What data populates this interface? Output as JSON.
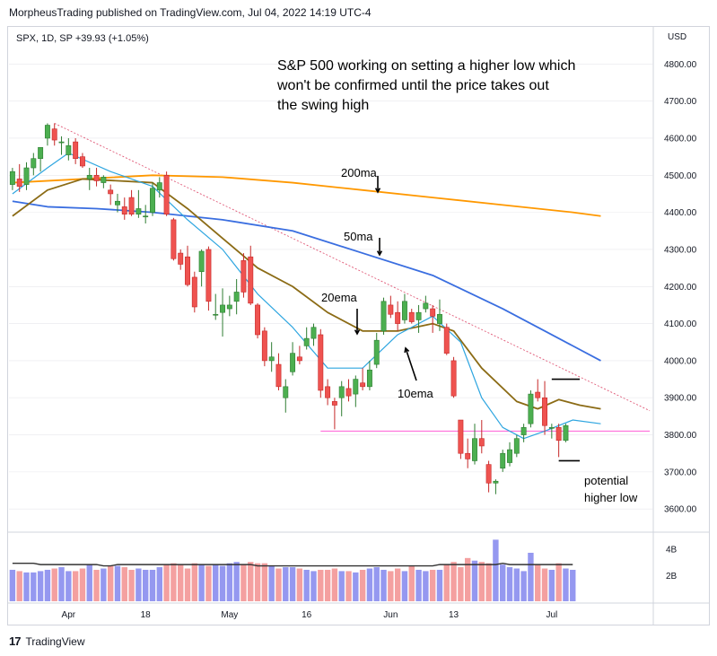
{
  "header": {
    "published_text": "MorpheusTrading published on TradingView.com, Jul 04, 2022 14:19 UTC-4"
  },
  "footer": {
    "logo_glyph": "17",
    "brand": "TradingView"
  },
  "chart_data": {
    "type": "candlestick",
    "symbol_line": "SPX, 1D, SP  +39.93 (+1.05%)",
    "y_axis_unit": "USD",
    "ylim": [
      3540,
      4900
    ],
    "y_ticks": [
      3600,
      3700,
      3800,
      3900,
      4000,
      4100,
      4200,
      4300,
      4400,
      4500,
      4600,
      4700,
      4800
    ],
    "x_ticks": [
      {
        "label": "Apr",
        "index": 8
      },
      {
        "label": "18",
        "index": 19
      },
      {
        "label": "May",
        "index": 31
      },
      {
        "label": "16",
        "index": 42
      },
      {
        "label": "Jun",
        "index": 54
      },
      {
        "label": "13",
        "index": 63
      },
      {
        "label": "Jul",
        "index": 77
      }
    ],
    "num_slots": 92,
    "candles": [
      {
        "o": 4475,
        "h": 4520,
        "l": 4460,
        "c": 4510
      },
      {
        "o": 4490,
        "h": 4530,
        "l": 4455,
        "c": 4470
      },
      {
        "o": 4475,
        "h": 4535,
        "l": 4460,
        "c": 4520
      },
      {
        "o": 4520,
        "h": 4560,
        "l": 4500,
        "c": 4545
      },
      {
        "o": 4545,
        "h": 4575,
        "l": 4510,
        "c": 4575
      },
      {
        "o": 4600,
        "h": 4640,
        "l": 4580,
        "c": 4635
      },
      {
        "o": 4625,
        "h": 4640,
        "l": 4580,
        "c": 4595
      },
      {
        "o": 4590,
        "h": 4605,
        "l": 4555,
        "c": 4590
      },
      {
        "o": 4555,
        "h": 4600,
        "l": 4540,
        "c": 4580
      },
      {
        "o": 4590,
        "h": 4600,
        "l": 4530,
        "c": 4545
      },
      {
        "o": 4550,
        "h": 4560,
        "l": 4520,
        "c": 4525
      },
      {
        "o": 4490,
        "h": 4520,
        "l": 4460,
        "c": 4500
      },
      {
        "o": 4500,
        "h": 4520,
        "l": 4470,
        "c": 4485
      },
      {
        "o": 4480,
        "h": 4500,
        "l": 4465,
        "c": 4495
      },
      {
        "o": 4460,
        "h": 4475,
        "l": 4420,
        "c": 4450
      },
      {
        "o": 4420,
        "h": 4450,
        "l": 4400,
        "c": 4430
      },
      {
        "o": 4415,
        "h": 4440,
        "l": 4380,
        "c": 4395
      },
      {
        "o": 4440,
        "h": 4460,
        "l": 4390,
        "c": 4395
      },
      {
        "o": 4395,
        "h": 4460,
        "l": 4385,
        "c": 4410
      },
      {
        "o": 4390,
        "h": 4420,
        "l": 4370,
        "c": 4390
      },
      {
        "o": 4400,
        "h": 4480,
        "l": 4390,
        "c": 4465
      },
      {
        "o": 4460,
        "h": 4495,
        "l": 4440,
        "c": 4480
      },
      {
        "o": 4500,
        "h": 4510,
        "l": 4390,
        "c": 4395
      },
      {
        "o": 4380,
        "h": 4385,
        "l": 4270,
        "c": 4275
      },
      {
        "o": 4290,
        "h": 4300,
        "l": 4245,
        "c": 4260
      },
      {
        "o": 4280,
        "h": 4310,
        "l": 4200,
        "c": 4205
      },
      {
        "o": 4225,
        "h": 4240,
        "l": 4130,
        "c": 4145
      },
      {
        "o": 4240,
        "h": 4300,
        "l": 4200,
        "c": 4295
      },
      {
        "o": 4300,
        "h": 4308,
        "l": 4135,
        "c": 4160
      },
      {
        "o": 4125,
        "h": 4180,
        "l": 4110,
        "c": 4125
      },
      {
        "o": 4130,
        "h": 4195,
        "l": 4065,
        "c": 4150
      },
      {
        "o": 4140,
        "h": 4175,
        "l": 4120,
        "c": 4150
      },
      {
        "o": 4160,
        "h": 4220,
        "l": 4125,
        "c": 4185
      },
      {
        "o": 4270,
        "h": 4290,
        "l": 4170,
        "c": 4185
      },
      {
        "o": 4280,
        "h": 4310,
        "l": 4150,
        "c": 4155
      },
      {
        "o": 4150,
        "h": 4155,
        "l": 4060,
        "c": 4070
      },
      {
        "o": 4080,
        "h": 4090,
        "l": 3985,
        "c": 4000
      },
      {
        "o": 4000,
        "h": 4050,
        "l": 3970,
        "c": 4010
      },
      {
        "o": 3990,
        "h": 4020,
        "l": 3920,
        "c": 3930
      },
      {
        "o": 3900,
        "h": 3950,
        "l": 3860,
        "c": 3930
      },
      {
        "o": 3970,
        "h": 4050,
        "l": 3960,
        "c": 4020
      },
      {
        "o": 4010,
        "h": 4040,
        "l": 3990,
        "c": 4000
      },
      {
        "o": 4040,
        "h": 4090,
        "l": 4030,
        "c": 4060
      },
      {
        "o": 4060,
        "h": 4100,
        "l": 4040,
        "c": 4090
      },
      {
        "o": 4070,
        "h": 4085,
        "l": 3900,
        "c": 3920
      },
      {
        "o": 3930,
        "h": 3950,
        "l": 3880,
        "c": 3900
      },
      {
        "o": 3890,
        "h": 3900,
        "l": 3815,
        "c": 3880
      },
      {
        "o": 3900,
        "h": 3945,
        "l": 3850,
        "c": 3930
      },
      {
        "o": 3925,
        "h": 3950,
        "l": 3890,
        "c": 3905
      },
      {
        "o": 3910,
        "h": 3960,
        "l": 3875,
        "c": 3950
      },
      {
        "o": 3940,
        "h": 3980,
        "l": 3920,
        "c": 3930
      },
      {
        "o": 3930,
        "h": 4000,
        "l": 3920,
        "c": 3975
      },
      {
        "o": 3990,
        "h": 4075,
        "l": 3980,
        "c": 4055
      },
      {
        "o": 4080,
        "h": 4170,
        "l": 4070,
        "c": 4160
      },
      {
        "o": 4150,
        "h": 4175,
        "l": 4115,
        "c": 4125
      },
      {
        "o": 4130,
        "h": 4160,
        "l": 4080,
        "c": 4100
      },
      {
        "o": 4110,
        "h": 4180,
        "l": 4100,
        "c": 4160
      },
      {
        "o": 4130,
        "h": 4140,
        "l": 4100,
        "c": 4105
      },
      {
        "o": 4110,
        "h": 4150,
        "l": 4075,
        "c": 4130
      },
      {
        "o": 4140,
        "h": 4175,
        "l": 4130,
        "c": 4155
      },
      {
        "o": 4140,
        "h": 4150,
        "l": 4075,
        "c": 4120
      },
      {
        "o": 4100,
        "h": 4165,
        "l": 4080,
        "c": 4125
      },
      {
        "o": 4090,
        "h": 4100,
        "l": 4015,
        "c": 4020
      },
      {
        "o": 4000,
        "h": 4010,
        "l": 3900,
        "c": 3905
      },
      {
        "o": 3840,
        "h": 3840,
        "l": 3735,
        "c": 3750
      },
      {
        "o": 3750,
        "h": 3790,
        "l": 3710,
        "c": 3735
      },
      {
        "o": 3730,
        "h": 3830,
        "l": 3720,
        "c": 3790
      },
      {
        "o": 3790,
        "h": 3840,
        "l": 3750,
        "c": 3770
      },
      {
        "o": 3720,
        "h": 3730,
        "l": 3645,
        "c": 3670
      },
      {
        "o": 3670,
        "h": 3680,
        "l": 3640,
        "c": 3675
      },
      {
        "o": 3710,
        "h": 3760,
        "l": 3700,
        "c": 3750
      },
      {
        "o": 3725,
        "h": 3780,
        "l": 3715,
        "c": 3760
      },
      {
        "o": 3750,
        "h": 3800,
        "l": 3740,
        "c": 3790
      },
      {
        "o": 3800,
        "h": 3830,
        "l": 3780,
        "c": 3820
      },
      {
        "o": 3830,
        "h": 3920,
        "l": 3820,
        "c": 3910
      },
      {
        "o": 3915,
        "h": 3950,
        "l": 3890,
        "c": 3900
      },
      {
        "o": 3900,
        "h": 3945,
        "l": 3800,
        "c": 3825
      },
      {
        "o": 3820,
        "h": 3830,
        "l": 3790,
        "c": 3820
      },
      {
        "o": 3820,
        "h": 3830,
        "l": 3740,
        "c": 3785
      },
      {
        "o": 3785,
        "h": 3830,
        "l": 3780,
        "c": 3825
      }
    ],
    "series": [
      {
        "name": "200ma",
        "color": "#ff9800",
        "anchors": [
          [
            0,
            4480
          ],
          [
            10,
            4490
          ],
          [
            20,
            4500
          ],
          [
            30,
            4495
          ],
          [
            40,
            4480
          ],
          [
            50,
            4460
          ],
          [
            60,
            4440
          ],
          [
            70,
            4420
          ],
          [
            80,
            4400
          ],
          [
            84,
            4390
          ]
        ]
      },
      {
        "name": "50ma",
        "color": "#3a6ee0",
        "anchors": [
          [
            0,
            4430
          ],
          [
            5,
            4415
          ],
          [
            12,
            4410
          ],
          [
            20,
            4400
          ],
          [
            30,
            4380
          ],
          [
            40,
            4350
          ],
          [
            50,
            4290
          ],
          [
            60,
            4230
          ],
          [
            70,
            4140
          ],
          [
            76,
            4080
          ],
          [
            80,
            4040
          ],
          [
            84,
            4000
          ]
        ]
      },
      {
        "name": "20ema",
        "color": "#8b6b15",
        "anchors": [
          [
            0,
            4390
          ],
          [
            5,
            4460
          ],
          [
            10,
            4490
          ],
          [
            20,
            4480
          ],
          [
            25,
            4410
          ],
          [
            30,
            4330
          ],
          [
            35,
            4250
          ],
          [
            40,
            4200
          ],
          [
            45,
            4130
          ],
          [
            50,
            4080
          ],
          [
            55,
            4080
          ],
          [
            60,
            4100
          ],
          [
            63,
            4080
          ],
          [
            67,
            3980
          ],
          [
            72,
            3890
          ],
          [
            75,
            3870
          ],
          [
            78,
            3895
          ],
          [
            81,
            3880
          ],
          [
            84,
            3870
          ]
        ]
      },
      {
        "name": "10ema",
        "color": "#2fa6e0",
        "anchors": [
          [
            0,
            4450
          ],
          [
            5,
            4520
          ],
          [
            8,
            4560
          ],
          [
            14,
            4510
          ],
          [
            20,
            4470
          ],
          [
            25,
            4380
          ],
          [
            30,
            4300
          ],
          [
            35,
            4180
          ],
          [
            40,
            4090
          ],
          [
            45,
            3980
          ],
          [
            50,
            3980
          ],
          [
            55,
            4070
          ],
          [
            60,
            4120
          ],
          [
            64,
            4050
          ],
          [
            67,
            3900
          ],
          [
            70,
            3820
          ],
          [
            73,
            3790
          ],
          [
            76,
            3810
          ],
          [
            80,
            3840
          ],
          [
            84,
            3830
          ]
        ]
      }
    ],
    "trendline": {
      "color": "#e05a78",
      "from": [
        6,
        4640
      ],
      "to": [
        91,
        3865
      ]
    },
    "support_line": {
      "color": "#ff5cd6",
      "from": [
        44,
        3810
      ],
      "to": [
        91,
        3810
      ]
    },
    "swing_high_marker": {
      "value": 3950
    },
    "low_marker": {
      "value": 3730
    },
    "annotations": [
      {
        "lines": [
          "S&P 500 working on setting a higher low which",
          "won't be confirmed until the price takes out",
          "the swing high"
        ]
      },
      {
        "lines": [
          "200ma"
        ]
      },
      {
        "lines": [
          "50ma"
        ]
      },
      {
        "lines": [
          "20ema"
        ]
      },
      {
        "lines": [
          "10ema"
        ]
      },
      {
        "lines": [
          "potential",
          "higher low"
        ]
      }
    ],
    "volume": {
      "ticks": [
        "4B",
        "2B"
      ],
      "ylim": [
        0,
        5
      ],
      "values": [
        2.4,
        2.3,
        2.2,
        2.2,
        2.3,
        2.4,
        2.5,
        2.6,
        2.3,
        2.3,
        2.5,
        2.8,
        2.4,
        2.5,
        2.7,
        2.7,
        2.6,
        2.4,
        2.5,
        2.4,
        2.4,
        2.6,
        2.8,
        2.9,
        2.8,
        2.5,
        2.9,
        2.8,
        2.7,
        2.8,
        2.7,
        2.9,
        3.0,
        2.8,
        3.0,
        2.9,
        2.9,
        2.7,
        2.5,
        2.6,
        2.6,
        2.5,
        2.4,
        2.3,
        2.4,
        2.4,
        2.5,
        2.3,
        2.3,
        2.2,
        2.4,
        2.5,
        2.6,
        2.4,
        2.3,
        2.5,
        2.3,
        2.7,
        2.4,
        2.3,
        2.4,
        2.4,
        2.8,
        3.0,
        2.6,
        3.3,
        3.1,
        3.0,
        2.9,
        4.7,
        2.8,
        2.6,
        2.5,
        2.3,
        3.7,
        2.8,
        2.5,
        2.4,
        2.9,
        2.5,
        2.4
      ],
      "ma": [
        2.9,
        2.9,
        2.9,
        2.9,
        2.8,
        2.8,
        2.8,
        2.8,
        2.8,
        2.8,
        2.8,
        2.8,
        2.8,
        2.7,
        2.7,
        2.8,
        2.8,
        2.8,
        2.8,
        2.8,
        2.8,
        2.8,
        2.8,
        2.8,
        2.8,
        2.8,
        2.8,
        2.8,
        2.8,
        2.8,
        2.8,
        2.8,
        2.8,
        2.8,
        2.8,
        2.7,
        2.7,
        2.7,
        2.7,
        2.7,
        2.7,
        2.7,
        2.7,
        2.7,
        2.7,
        2.7,
        2.7,
        2.7,
        2.7,
        2.7,
        2.7,
        2.7,
        2.7,
        2.7,
        2.7,
        2.7,
        2.7,
        2.7,
        2.7,
        2.7,
        2.7,
        2.8,
        2.8,
        2.8,
        2.8,
        2.8,
        2.8,
        2.8,
        2.8,
        2.8,
        2.9,
        2.8,
        2.8,
        2.8,
        2.8,
        2.8,
        2.8,
        2.8,
        2.8,
        2.8,
        2.8
      ]
    },
    "colors": {
      "up": "#4caf50",
      "down": "#ef5350",
      "up_border": "#2e7d32",
      "down_border": "#c62828",
      "vol_up": "#9598f0",
      "vol_down": "#f4a0a0",
      "vol_ma": "#333333",
      "grid": "#e8e8ec",
      "axis_text": "#131722"
    }
  }
}
